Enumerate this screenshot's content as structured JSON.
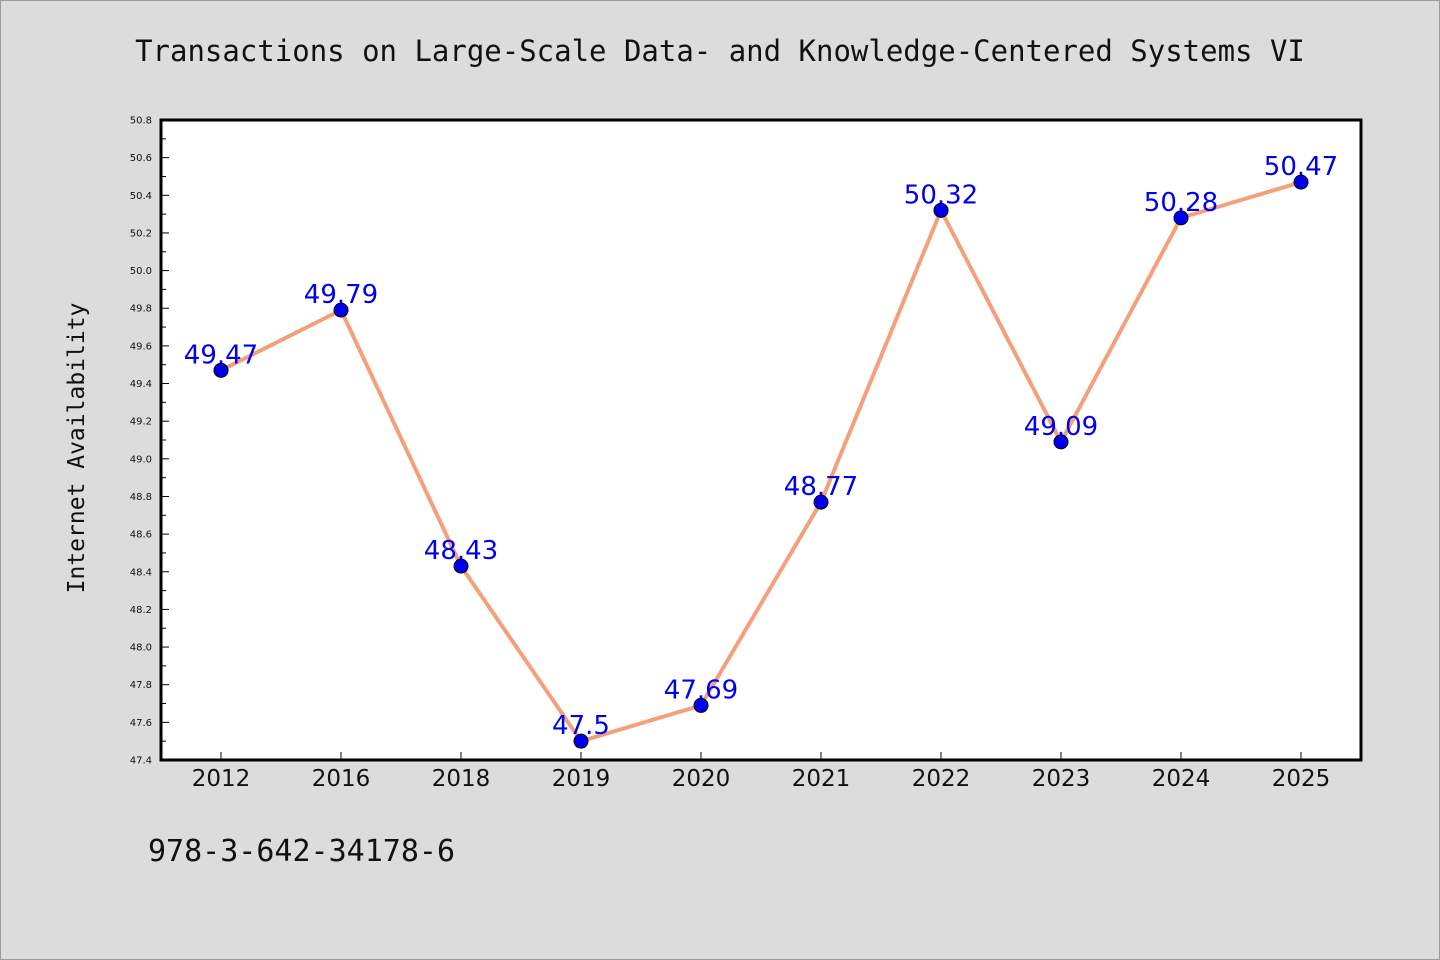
{
  "chart_data": {
    "type": "line",
    "title": "Transactions on Large-Scale Data- and Knowledge-Centered Systems VI",
    "xlabel": "",
    "ylabel": "Internet Availability",
    "categories": [
      "2012",
      "2016",
      "2018",
      "2019",
      "2020",
      "2021",
      "2022",
      "2023",
      "2024",
      "2025"
    ],
    "series": [
      {
        "values": [
          49.47,
          49.79,
          48.43,
          47.5,
          47.69,
          48.77,
          50.32,
          49.09,
          50.28,
          50.47
        ],
        "data_labels": [
          "49.47",
          "49.79",
          "48.43",
          "47.5",
          "47.69",
          "48.77",
          "50.32",
          "49.09",
          "50.28",
          "50.47"
        ]
      }
    ],
    "ylim": [
      47.4,
      50.8
    ],
    "yticks": [
      "47.4",
      "47.6",
      "47.8",
      "48.0",
      "48.2",
      "48.4",
      "48.6",
      "48.8",
      "49.0",
      "49.2",
      "49.4",
      "49.6",
      "49.8",
      "50.0",
      "50.2",
      "50.4",
      "50.6",
      "50.8"
    ],
    "grid": false,
    "legend": "none",
    "colors": {
      "line": "#f4a07a",
      "marker": "#0000ee",
      "data_label": "#0000ee",
      "background": "#dcdcdc",
      "plot_background": "#ffffff"
    }
  },
  "footer": {
    "text": "978-3-642-34178-6"
  }
}
